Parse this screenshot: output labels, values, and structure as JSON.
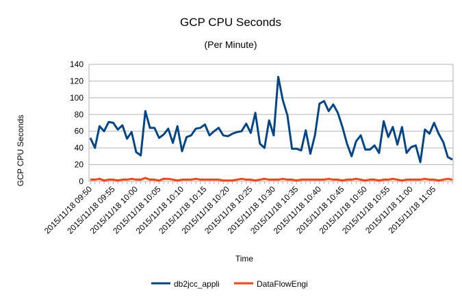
{
  "chart_data": {
    "type": "line",
    "title": "GCP CPU Seconds",
    "subtitle": "(Per Minute)",
    "xlabel": "Time",
    "ylabel": "GCP CPU Seconds",
    "ylim": [
      0,
      140
    ],
    "yticks": [
      0,
      20,
      40,
      60,
      80,
      100,
      120,
      140
    ],
    "grid": true,
    "legend_position": "bottom",
    "x_tick_labels": [
      "2015/11/18 09:50",
      "2015/11/18 09:55",
      "2015/11/18 10:00",
      "2015/11/18 10:05",
      "2015/11/18 10:10",
      "2015/11/18 10:15",
      "2015/11/18 10:20",
      "2015/11/18 10:25",
      "2015/11/18 10:30",
      "2015/11/18 10:35",
      "2015/11/18 10:40",
      "2015/11/18 10:45",
      "2015/11/18 10:50",
      "2015/11/18 10:55",
      "2015/11/18 11:00",
      "2015/11/18 11:05"
    ],
    "x_tick_every": 5,
    "point_count": 80,
    "series": [
      {
        "name": "db2jcc_appli",
        "color": "#004586",
        "values": [
          52,
          40,
          66,
          60,
          71,
          70,
          62,
          67,
          51,
          59,
          35,
          31,
          84,
          64,
          64,
          52,
          56,
          63,
          46,
          66,
          36,
          53,
          55,
          63,
          64,
          68,
          55,
          60,
          64,
          55,
          54,
          57,
          59,
          60,
          69,
          58,
          82,
          45,
          40,
          73,
          55,
          125,
          97,
          79,
          39,
          39,
          37,
          61,
          33,
          55,
          93,
          96,
          84,
          92,
          82,
          65,
          45,
          30,
          48,
          55,
          38,
          38,
          43,
          34,
          72,
          53,
          65,
          44,
          65,
          34,
          41,
          43,
          23,
          62,
          57,
          70,
          57,
          47,
          29,
          26
        ]
      },
      {
        "name": "DataFlowEngi",
        "color": "#ff420e",
        "values": [
          2,
          2,
          3,
          1,
          2,
          2,
          1,
          2,
          2,
          3,
          2,
          2,
          4,
          2,
          2,
          1,
          3,
          3,
          2,
          1,
          2,
          2,
          2,
          3,
          2,
          2,
          2,
          2,
          2,
          1,
          1,
          1,
          2,
          3,
          2,
          2,
          1,
          2,
          3,
          2,
          2,
          2,
          3,
          2,
          2,
          1,
          2,
          2,
          2,
          2,
          2,
          2,
          3,
          2,
          2,
          1,
          2,
          2,
          3,
          2,
          1,
          2,
          2,
          1,
          2,
          2,
          3,
          2,
          1,
          2,
          2,
          2,
          2,
          3,
          2,
          2,
          1,
          2,
          3,
          2
        ]
      }
    ]
  }
}
